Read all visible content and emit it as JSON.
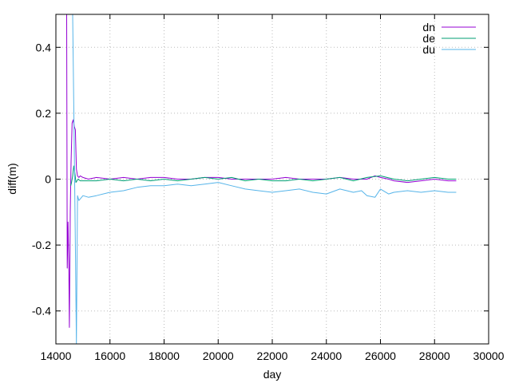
{
  "chart_data": {
    "type": "line",
    "title": "",
    "xlabel": "day",
    "ylabel": "diff(m)",
    "xlim": [
      14000,
      30000
    ],
    "ylim": [
      -0.5,
      0.5
    ],
    "xticks": [
      14000,
      16000,
      18000,
      20000,
      22000,
      24000,
      26000,
      28000,
      30000
    ],
    "xtick_labels": [
      "14000",
      "16000",
      "18000",
      "20000",
      "22000",
      "24000",
      "26000",
      "28000",
      "30000"
    ],
    "yticks": [
      -0.4,
      -0.2,
      0,
      0.2,
      0.4
    ],
    "ytick_labels": [
      "-0.4",
      "-0.2",
      "0",
      "0.2",
      "0.4"
    ],
    "grid": true,
    "legend_position": "top-right",
    "series": [
      {
        "name": "dn",
        "color": "#9400d3",
        "x": [
          14400,
          14420,
          14450,
          14480,
          14500,
          14530,
          14560,
          14600,
          14640,
          14680,
          14720,
          14760,
          14800,
          14850,
          14900,
          15000,
          15200,
          15500,
          16000,
          16500,
          17000,
          17500,
          18000,
          18500,
          19000,
          19500,
          20000,
          20500,
          21000,
          21500,
          22000,
          22500,
          23000,
          23500,
          24000,
          24500,
          25000,
          25500,
          25800,
          26000,
          26300,
          26500,
          27000,
          27500,
          28000,
          28500,
          28800
        ],
        "y": [
          0.5,
          -0.27,
          -0.13,
          -0.29,
          -0.45,
          -0.1,
          0.05,
          0.17,
          0.18,
          0.16,
          0.15,
          0.03,
          0.01,
          0.005,
          0.01,
          0.005,
          0.0,
          0.005,
          0.0,
          0.005,
          0.0,
          0.005,
          0.005,
          0.0,
          0.0,
          0.005,
          0.005,
          0.0,
          0.0,
          0.0,
          0.0,
          0.005,
          0.0,
          0.0,
          0.0,
          0.005,
          0.0,
          0.0,
          0.01,
          0.005,
          0.0,
          -0.005,
          -0.01,
          -0.005,
          0.0,
          -0.005,
          -0.005
        ]
      },
      {
        "name": "de",
        "color": "#009e73",
        "x": [
          14550,
          14580,
          14620,
          14660,
          14700,
          14740,
          14780,
          14820,
          14900,
          15000,
          15500,
          16000,
          16500,
          17000,
          17500,
          18000,
          18500,
          19000,
          19500,
          20000,
          20500,
          21000,
          21500,
          22000,
          22500,
          23000,
          23500,
          24000,
          24500,
          25000,
          25500,
          26000,
          26500,
          27000,
          27500,
          28000,
          28500,
          28800
        ],
        "y": [
          -0.02,
          -0.01,
          0.01,
          0.04,
          0.02,
          -0.01,
          -0.005,
          0.0,
          -0.005,
          -0.005,
          -0.005,
          0.0,
          -0.005,
          0.0,
          -0.005,
          0.0,
          -0.005,
          0.0,
          0.005,
          0.0,
          0.005,
          -0.005,
          0.0,
          -0.005,
          -0.005,
          0.0,
          -0.005,
          0.0,
          0.005,
          -0.005,
          0.005,
          0.01,
          0.0,
          -0.005,
          0.0,
          0.005,
          0.0,
          0.0
        ]
      },
      {
        "name": "du",
        "color": "#56b4e9",
        "x": [
          14620,
          14650,
          14680,
          14720,
          14760,
          14800,
          14850,
          14900,
          15000,
          15200,
          15500,
          16000,
          16500,
          17000,
          17500,
          18000,
          18500,
          19000,
          19500,
          20000,
          20500,
          21000,
          21500,
          22000,
          22500,
          23000,
          23500,
          24000,
          24500,
          25000,
          25300,
          25500,
          25800,
          26000,
          26300,
          26500,
          27000,
          27500,
          28000,
          28500,
          28800
        ],
        "y": [
          0.5,
          0.3,
          0.1,
          -0.2,
          -0.5,
          -0.05,
          -0.065,
          -0.06,
          -0.05,
          -0.055,
          -0.05,
          -0.04,
          -0.035,
          -0.025,
          -0.02,
          -0.02,
          -0.015,
          -0.02,
          -0.015,
          -0.01,
          -0.02,
          -0.03,
          -0.035,
          -0.04,
          -0.035,
          -0.03,
          -0.04,
          -0.045,
          -0.03,
          -0.04,
          -0.035,
          -0.05,
          -0.055,
          -0.03,
          -0.045,
          -0.04,
          -0.035,
          -0.04,
          -0.035,
          -0.04,
          -0.04
        ]
      }
    ]
  }
}
